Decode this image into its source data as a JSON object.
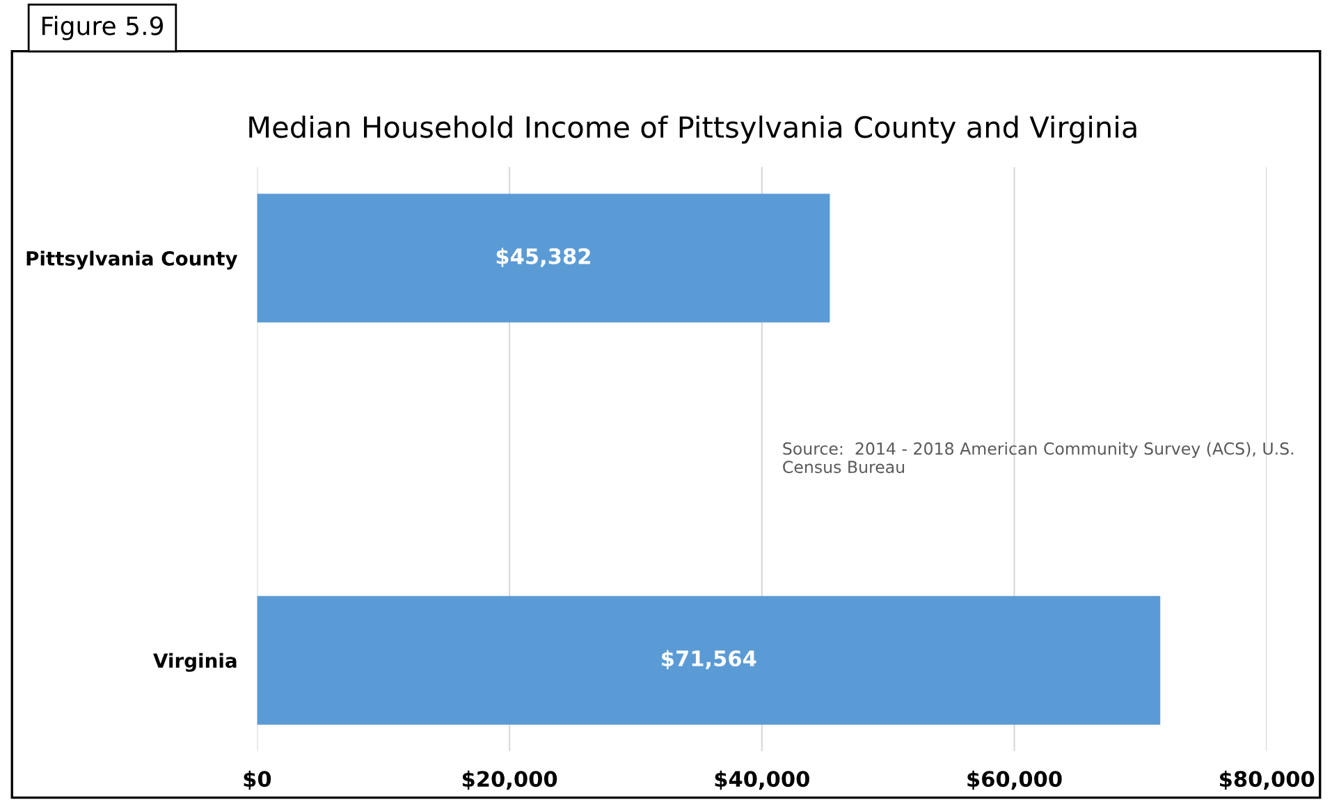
{
  "chart_data": {
    "type": "bar",
    "orientation": "horizontal",
    "title": "Median Household Income of Pittsylvania County and Virginia",
    "categories": [
      "Pittsylvania County",
      "Virginia"
    ],
    "values": [
      45382,
      71564
    ],
    "value_labels": [
      "$45,382",
      "$71,564"
    ],
    "color": "#5b9bd5",
    "xlim": [
      0,
      80000
    ],
    "xticks": [
      {
        "value": 0,
        "label": "$0"
      },
      {
        "value": 20000,
        "label": "$20,000"
      },
      {
        "value": 40000,
        "label": "$40,000"
      },
      {
        "value": 60000,
        "label": "$60,000"
      },
      {
        "value": 80000,
        "label": "$80,000"
      }
    ],
    "grid": "x",
    "legend": false,
    "annotations": [
      "Figure 5.9",
      "Source:  2014 - 2018 American Community Survey (ACS), U.S. Census Bureau"
    ]
  }
}
